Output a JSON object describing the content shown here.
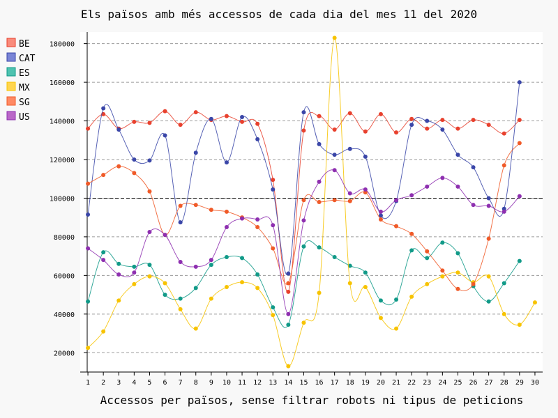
{
  "chart_data": {
    "type": "line",
    "title": "Els països amb més accessos de cada dia del mes 11 del 2020",
    "xlabel": "Accessos per països, sense filtrar robots ni tipus de peticions",
    "ylabel": "",
    "x": [
      1,
      2,
      3,
      4,
      5,
      6,
      7,
      8,
      9,
      10,
      11,
      12,
      13,
      14,
      15,
      16,
      17,
      18,
      19,
      20,
      21,
      22,
      23,
      24,
      25,
      26,
      27,
      28,
      29,
      30
    ],
    "xlim": [
      0.5,
      30.5
    ],
    "ylim": [
      10000,
      186000
    ],
    "yticks": [
      20000,
      40000,
      60000,
      80000,
      100000,
      120000,
      140000,
      160000,
      180000
    ],
    "reference_line": 100000,
    "grid": "horizontal dashed",
    "legend_position": "left",
    "series": [
      {
        "name": "BE",
        "color": "#e8412e",
        "fill": "#f98b7b",
        "values": [
          136000,
          143500,
          136000,
          139500,
          139000,
          145000,
          138000,
          144500,
          140500,
          142500,
          139500,
          138500,
          109500,
          51500,
          135000,
          142500,
          135500,
          144000,
          134500,
          143500,
          134000,
          141000,
          136000,
          140500,
          136000,
          140500,
          138000,
          133500,
          140500,
          null
        ]
      },
      {
        "name": "CAT",
        "color": "#3a46a8",
        "fill": "#7a85d6",
        "values": [
          91500,
          146500,
          135500,
          120000,
          119500,
          132500,
          87500,
          123500,
          141000,
          118500,
          142000,
          130500,
          104500,
          61000,
          144500,
          128000,
          122500,
          125500,
          121500,
          91000,
          98500,
          138000,
          140000,
          135500,
          122500,
          116000,
          100000,
          94500,
          160000,
          null
        ]
      },
      {
        "name": "ES",
        "color": "#119a88",
        "fill": "#4fc3b0",
        "values": [
          46500,
          72000,
          66000,
          64500,
          65500,
          50000,
          48000,
          53500,
          65500,
          69500,
          69000,
          60500,
          43500,
          34500,
          75000,
          74500,
          69500,
          65000,
          61500,
          47000,
          47500,
          73000,
          69000,
          77000,
          71500,
          54500,
          46500,
          56000,
          67500,
          null
        ]
      },
      {
        "name": "MX",
        "color": "#f7c300",
        "fill": "#ffd54f",
        "values": [
          22500,
          31000,
          47000,
          55500,
          59500,
          56000,
          42500,
          32500,
          48000,
          54000,
          56500,
          53500,
          39500,
          13000,
          35500,
          51000,
          183000,
          56000,
          54000,
          38000,
          32500,
          49000,
          55500,
          59500,
          61500,
          56500,
          59500,
          40000,
          34500,
          46000
        ]
      },
      {
        "name": "SG",
        "color": "#f05a28",
        "fill": "#ff8a65",
        "values": [
          107500,
          112000,
          116500,
          113000,
          103500,
          81000,
          96000,
          96500,
          94000,
          93000,
          90000,
          85000,
          74000,
          56000,
          99000,
          98000,
          99000,
          98500,
          103000,
          89000,
          85500,
          81500,
          72500,
          62500,
          53000,
          55500,
          79000,
          117000,
          128500,
          null
        ]
      },
      {
        "name": "US",
        "color": "#8e2fb0",
        "fill": "#ba68c8",
        "values": [
          74000,
          68000,
          60500,
          61500,
          82500,
          81000,
          67000,
          64500,
          68000,
          85000,
          89500,
          89000,
          86000,
          40000,
          88500,
          108500,
          114500,
          102500,
          104500,
          93000,
          99000,
          101500,
          106000,
          110500,
          106000,
          96500,
          96000,
          93000,
          101000,
          null
        ]
      }
    ]
  }
}
